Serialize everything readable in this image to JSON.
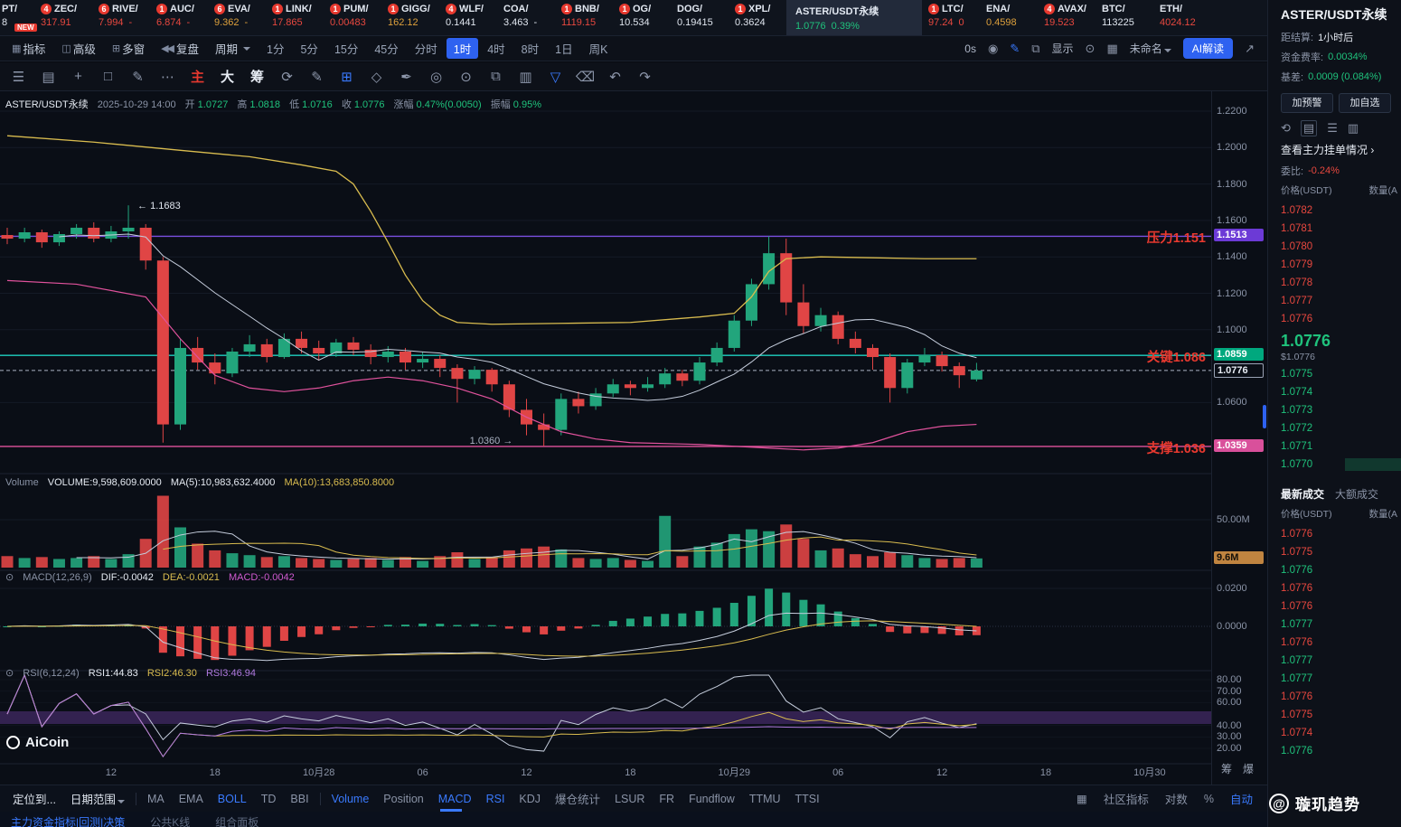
{
  "colors": {
    "green": "#1fc27c",
    "red": "#e8483f",
    "yellow": "#d9bc4f",
    "purple_line": "#7a4fe0",
    "teal_line": "#1fd1c1",
    "pink_line": "#e0529c",
    "blue_accent": "#2e62f0"
  },
  "ticker": {
    "items": [
      {
        "name": "PT/",
        "price": "8",
        "color": "white",
        "cut": true,
        "new_tag": "NEW"
      },
      {
        "name": "ZEC/",
        "price": "317.91",
        "color": "red",
        "badge": "4"
      },
      {
        "name": "RIVE/",
        "price": "7.994",
        "sub": "-",
        "color": "red",
        "badge": "6"
      },
      {
        "name": "AUC/",
        "price": "6.874",
        "sub": "-",
        "color": "red",
        "badge": "1"
      },
      {
        "name": "EVA/",
        "price": "9.362",
        "sub": "-",
        "color": "orange",
        "badge": "6"
      },
      {
        "name": "LINK/",
        "price": "17.865",
        "color": "red",
        "badge": "1"
      },
      {
        "name": "PUM/",
        "price": "0.00483",
        "color": "red",
        "badge": "1"
      },
      {
        "name": "GIGG/",
        "price": "162.12",
        "color": "orange",
        "badge": "1"
      },
      {
        "name": "WLF/",
        "price": "0.1441",
        "color": "white",
        "badge": "4"
      },
      {
        "name": "COA/",
        "price": "3.463",
        "sub": "-",
        "color": "white"
      },
      {
        "name": "BNB/",
        "price": "1119.15",
        "color": "red",
        "badge": "1"
      },
      {
        "name": "OG/",
        "price": "10.534",
        "color": "white",
        "badge": "1"
      },
      {
        "name": "DOG/",
        "price": "0.19415",
        "color": "white"
      },
      {
        "name": "XPL/",
        "price": "0.3624",
        "color": "white",
        "badge": "1"
      },
      {
        "name": "ASTER/USDT永续",
        "price": "1.0776",
        "sub": "0.39%",
        "color": "green",
        "selected": true
      },
      {
        "name": "LTC/",
        "price": "97.24",
        "sub": "0",
        "color": "red",
        "badge": "1"
      },
      {
        "name": "ENA/",
        "price": "0.4598",
        "color": "orange"
      },
      {
        "name": "AVAX/",
        "price": "19.523",
        "color": "red",
        "badge": "4"
      },
      {
        "name": "BTC/",
        "price": "113225",
        "color": "white"
      },
      {
        "name": "ETH/",
        "price": "4024.12",
        "color": "red"
      }
    ]
  },
  "toolbar": {
    "left": [
      {
        "icon": "▦",
        "icon_name": "indicator-icon",
        "label": "指标"
      },
      {
        "icon": "◫",
        "icon_name": "advanced-icon",
        "label": "高级"
      },
      {
        "icon": "⊞",
        "icon_name": "multi-window-icon",
        "label": "多窗"
      },
      {
        "icon": "◀◀",
        "icon_name": "replay-icon",
        "label": "复盘"
      }
    ],
    "period_label": "周期",
    "timeframes": [
      "1分",
      "5分",
      "15分",
      "45分",
      "分时",
      "1时",
      "4时",
      "8时",
      "1日",
      "周K"
    ],
    "active_timeframe": "1时",
    "right": [
      {
        "type": "text",
        "label": "0s",
        "name": "countdown-label"
      },
      {
        "type": "icon",
        "glyph": "◉",
        "name": "camera-icon"
      },
      {
        "type": "icon",
        "glyph": "✎",
        "name": "edit-icon",
        "color": "#3a7afe"
      },
      {
        "type": "icon",
        "glyph": "⧉",
        "name": "expand-icon"
      },
      {
        "type": "text",
        "label": "显示",
        "name": "display-toggle"
      },
      {
        "type": "icon",
        "glyph": "⊙",
        "name": "settings-icon"
      },
      {
        "type": "icon",
        "glyph": "▦",
        "name": "layout-grid-icon"
      },
      {
        "type": "text",
        "label": "未命名",
        "caret": true,
        "name": "template-select"
      },
      {
        "type": "button",
        "label": "AI解读",
        "name": "ai-analysis-button"
      },
      {
        "type": "icon",
        "glyph": "↗",
        "name": "share-icon"
      }
    ]
  },
  "drawbar": {
    "icons": [
      {
        "glyph": "☰",
        "name": "menu-icon"
      },
      {
        "glyph": "▤",
        "name": "panel-list-icon"
      },
      {
        "glyph": "+",
        "name": "crosshair-icon"
      },
      {
        "glyph": "□",
        "name": "rectangle-tool-icon"
      },
      {
        "glyph": "✎",
        "name": "pencil-tool-icon"
      },
      {
        "glyph": "⋯",
        "name": "more-tools-icon"
      },
      {
        "glyph": "主",
        "name": "main-chart-toggle",
        "cls": "red"
      },
      {
        "glyph": "大",
        "name": "large-chart-toggle",
        "cls": "white"
      },
      {
        "glyph": "筹",
        "name": "chip-distribution-toggle",
        "cls": "white"
      },
      {
        "glyph": "⟳",
        "name": "refresh-icon"
      },
      {
        "glyph": "✎",
        "name": "brush-icon"
      },
      {
        "glyph": "⊞",
        "name": "compare-icon",
        "cls": "blue"
      },
      {
        "glyph": "◇",
        "name": "shape-tool-icon"
      },
      {
        "glyph": "✒",
        "name": "pen-tool-icon"
      },
      {
        "glyph": "◎",
        "name": "marker-tool-icon"
      },
      {
        "glyph": "⊙",
        "name": "magnet-icon"
      },
      {
        "glyph": "⧉",
        "name": "copy-icon"
      },
      {
        "glyph": "▥",
        "name": "template-icon"
      },
      {
        "glyph": "▽",
        "name": "filter-icon",
        "cls": "blue"
      },
      {
        "glyph": "⌫",
        "name": "delete-drawing-icon"
      },
      {
        "glyph": "↶",
        "name": "undo-icon"
      },
      {
        "glyph": "↷",
        "name": "redo-icon"
      }
    ]
  },
  "chart": {
    "ohlc": {
      "symbol": "ASTER/USDT永续",
      "datetime": "2025-10-29 14:00",
      "o_label": "开",
      "o": "1.0727",
      "h_label": "高",
      "h": "1.0818",
      "l_label": "低",
      "l": "1.0716",
      "c_label": "收",
      "c": "1.0776",
      "chg_label": "涨幅",
      "chg": "0.47%(0.0050)",
      "amp_label": "振幅",
      "amp": "0.95%"
    },
    "volume_line": {
      "name": "Volume",
      "vol": "VOLUME:9,598,609.0000",
      "ma5": "MA(5):10,983,632.4000",
      "ma10": "MA(10):13,683,850.8000"
    },
    "macd_line": {
      "icon": "⊙",
      "name": "MACD(12,26,9)",
      "dif": "DIF:-0.0042",
      "dea": "DEA:-0.0021",
      "macd": "MACD:-0.0042"
    },
    "rsi_line": {
      "icon": "⊙",
      "name": "RSI(6,12,24)",
      "r1": "RSI1:44.83",
      "r2": "RSI2:46.30",
      "r3": "RSI3:46.94"
    },
    "level_labels": {
      "resistance": "压力1.151",
      "key": "关键1.086",
      "support": "支撑1.036"
    },
    "tags": {
      "resistance": "1.1513",
      "key": "1.0859",
      "current": "1.0776",
      "support": "1.0359",
      "volume": "9.6M"
    },
    "annotations": {
      "high": "← 1.1683",
      "low": "1.0360 →"
    },
    "y_axis": [
      "1.2200",
      "1.2000",
      "1.1800",
      "1.1600",
      "1.1400",
      "1.1200",
      "1.1000",
      "1.0600"
    ],
    "vol_axis": [
      "50.00M"
    ],
    "macd_axis": [
      "0.0200",
      "0.0000"
    ],
    "rsi_axis": [
      "80.00",
      "70.00",
      "60.00",
      "40.00",
      "30.00",
      "20.00"
    ],
    "x_axis": [
      {
        "label": "12",
        "i": 6
      },
      {
        "label": "18",
        "i": 12
      },
      {
        "label": "10月28",
        "i": 18
      },
      {
        "label": "06",
        "i": 24
      },
      {
        "label": "12",
        "i": 30
      },
      {
        "label": "18",
        "i": 36
      },
      {
        "label": "10月29",
        "i": 42
      },
      {
        "label": "06",
        "i": 48
      },
      {
        "label": "12",
        "i": 54
      },
      {
        "label": "18",
        "i": 60
      },
      {
        "label": "10月30",
        "i": 66
      }
    ],
    "axis_buttons": [
      "筹",
      "爆"
    ]
  },
  "chart_data": {
    "type": "candlestick",
    "symbol": "ASTER/USDT永续",
    "timeframe": "1时",
    "levels": {
      "resistance": 1.1513,
      "key": 1.0859,
      "current": 1.0776,
      "support": 1.0359
    },
    "annotations": {
      "high": {
        "i": 7,
        "price": 1.1683
      },
      "low": {
        "i": 31,
        "price": 1.036
      }
    },
    "candles": [
      [
        1.152,
        1.156,
        1.147,
        1.15,
        12
      ],
      [
        1.15,
        1.156,
        1.148,
        1.1535,
        10
      ],
      [
        1.1535,
        1.155,
        1.145,
        1.148,
        11
      ],
      [
        1.148,
        1.154,
        1.146,
        1.1525,
        9
      ],
      [
        1.1525,
        1.158,
        1.15,
        1.156,
        10
      ],
      [
        1.156,
        1.159,
        1.148,
        1.15,
        12
      ],
      [
        1.15,
        1.157,
        1.148,
        1.154,
        9
      ],
      [
        1.154,
        1.1683,
        1.15,
        1.156,
        14
      ],
      [
        1.156,
        1.158,
        1.133,
        1.138,
        30
      ],
      [
        1.138,
        1.14,
        1.038,
        1.048,
        75
      ],
      [
        1.048,
        1.095,
        1.045,
        1.09,
        42
      ],
      [
        1.09,
        1.096,
        1.078,
        1.082,
        25
      ],
      [
        1.082,
        1.087,
        1.07,
        1.076,
        18
      ],
      [
        1.076,
        1.09,
        1.074,
        1.088,
        15
      ],
      [
        1.088,
        1.097,
        1.085,
        1.092,
        13
      ],
      [
        1.092,
        1.095,
        1.082,
        1.085,
        11
      ],
      [
        1.085,
        1.098,
        1.084,
        1.095,
        12
      ],
      [
        1.095,
        1.099,
        1.087,
        1.09,
        10
      ],
      [
        1.09,
        1.094,
        1.083,
        1.087,
        9
      ],
      [
        1.087,
        1.095,
        1.085,
        1.093,
        8
      ],
      [
        1.093,
        1.096,
        1.086,
        1.089,
        9
      ],
      [
        1.089,
        1.092,
        1.081,
        1.085,
        10
      ],
      [
        1.085,
        1.091,
        1.082,
        1.088,
        8
      ],
      [
        1.088,
        1.09,
        1.078,
        1.082,
        11
      ],
      [
        1.082,
        1.088,
        1.079,
        1.084,
        7
      ],
      [
        1.084,
        1.086,
        1.074,
        1.079,
        12
      ],
      [
        1.079,
        1.081,
        1.06,
        1.073,
        16
      ],
      [
        1.073,
        1.08,
        1.07,
        1.078,
        9
      ],
      [
        1.078,
        1.079,
        1.066,
        1.07,
        11
      ],
      [
        1.07,
        1.072,
        1.052,
        1.056,
        18
      ],
      [
        1.056,
        1.062,
        1.042,
        1.048,
        20
      ],
      [
        1.048,
        1.054,
        1.036,
        1.045,
        22
      ],
      [
        1.045,
        1.065,
        1.042,
        1.062,
        19
      ],
      [
        1.062,
        1.066,
        1.054,
        1.058,
        10
      ],
      [
        1.058,
        1.068,
        1.056,
        1.065,
        9
      ],
      [
        1.065,
        1.073,
        1.063,
        1.07,
        10
      ],
      [
        1.07,
        1.072,
        1.064,
        1.068,
        8
      ],
      [
        1.068,
        1.074,
        1.066,
        1.07,
        7
      ],
      [
        1.07,
        1.079,
        1.068,
        1.076,
        54
      ],
      [
        1.076,
        1.078,
        1.069,
        1.072,
        12
      ],
      [
        1.072,
        1.085,
        1.07,
        1.082,
        22
      ],
      [
        1.082,
        1.093,
        1.08,
        1.09,
        26
      ],
      [
        1.09,
        1.108,
        1.088,
        1.105,
        35
      ],
      [
        1.105,
        1.128,
        1.102,
        1.125,
        40
      ],
      [
        1.125,
        1.1513,
        1.122,
        1.142,
        38
      ],
      [
        1.142,
        1.15,
        1.108,
        1.115,
        45
      ],
      [
        1.115,
        1.125,
        1.098,
        1.102,
        30
      ],
      [
        1.102,
        1.112,
        1.099,
        1.108,
        18
      ],
      [
        1.108,
        1.11,
        1.092,
        1.095,
        20
      ],
      [
        1.095,
        1.099,
        1.087,
        1.09,
        14
      ],
      [
        1.09,
        1.092,
        1.078,
        1.085,
        12
      ],
      [
        1.085,
        1.087,
        1.06,
        1.068,
        16
      ],
      [
        1.068,
        1.084,
        1.065,
        1.082,
        13
      ],
      [
        1.082,
        1.09,
        1.08,
        1.086,
        10
      ],
      [
        1.086,
        1.088,
        1.077,
        1.08,
        9
      ],
      [
        1.08,
        1.082,
        1.068,
        1.075,
        10
      ],
      [
        1.0727,
        1.0818,
        1.0716,
        1.0776,
        9.6
      ]
    ],
    "overlays": {
      "ma_yellow": [
        [
          0,
          1.2065
        ],
        [
          5,
          1.203
        ],
        [
          10,
          1.1985
        ],
        [
          14,
          1.195
        ],
        [
          17,
          1.1905
        ],
        [
          19,
          1.187
        ],
        [
          20,
          1.18
        ],
        [
          21,
          1.165
        ],
        [
          22,
          1.148
        ],
        [
          23,
          1.13
        ],
        [
          24,
          1.116
        ],
        [
          25,
          1.108
        ],
        [
          26,
          1.104
        ],
        [
          28,
          1.103
        ],
        [
          32,
          1.1035
        ],
        [
          36,
          1.104
        ],
        [
          40,
          1.107
        ],
        [
          42,
          1.109
        ],
        [
          43,
          1.118
        ],
        [
          44,
          1.132
        ],
        [
          45,
          1.139
        ],
        [
          47,
          1.14
        ],
        [
          50,
          1.1395
        ],
        [
          53,
          1.139
        ],
        [
          56,
          1.139
        ]
      ],
      "boll_lower": [
        [
          0,
          1.127
        ],
        [
          4,
          1.125
        ],
        [
          8,
          1.118
        ],
        [
          10,
          1.095
        ],
        [
          12,
          1.075
        ],
        [
          14,
          1.068
        ],
        [
          16,
          1.066
        ],
        [
          18,
          1.068
        ],
        [
          20,
          1.072
        ],
        [
          22,
          1.074
        ],
        [
          24,
          1.072
        ],
        [
          26,
          1.068
        ],
        [
          28,
          1.062
        ],
        [
          30,
          1.052
        ],
        [
          32,
          1.044
        ],
        [
          34,
          1.04
        ],
        [
          36,
          1.038
        ],
        [
          40,
          1.037
        ],
        [
          44,
          1.035
        ],
        [
          46,
          1.034
        ],
        [
          48,
          1.035
        ],
        [
          50,
          1.038
        ],
        [
          52,
          1.044
        ],
        [
          54,
          1.047
        ],
        [
          56,
          1.048
        ]
      ]
    }
  },
  "sidebar": {
    "title": "ASTER/USDT永续",
    "stats": [
      {
        "label": "距结算:",
        "value": "1小时后",
        "color": "white"
      },
      {
        "label": "资金费率:",
        "value": "0.0034%",
        "color": "green"
      },
      {
        "label": "基差:",
        "value": "0.0009 (0.084%)",
        "color": "green"
      }
    ],
    "buttons": [
      "加预警",
      "加自选"
    ],
    "view_icons": [
      {
        "glyph": "⟲",
        "name": "refresh-book-icon"
      },
      {
        "glyph": "▤",
        "name": "depth-view-icon",
        "boxed": true
      },
      {
        "glyph": "☰",
        "name": "list-view-icon"
      },
      {
        "glyph": "▥",
        "name": "grid-view-icon"
      }
    ],
    "link": "查看主力挂单情况",
    "link_arrow": "›",
    "weibi_label": "委比:",
    "weibi_value": "-0.24%",
    "book_header": [
      "价格(USDT)",
      "数量(A"
    ],
    "asks": [
      "1.0782",
      "1.0781",
      "1.0780",
      "1.0779",
      "1.0778",
      "1.0777",
      "1.0776"
    ],
    "last_price": "1.0776",
    "last_price_usd": "$1.0776",
    "bids": [
      "1.0775",
      "1.0774",
      "1.0773",
      "1.0772",
      "1.0771",
      "1.0770"
    ],
    "tabs": [
      "最新成交",
      "大额成交"
    ],
    "active_tab": "最新成交",
    "trades_header": [
      "价格(USDT)",
      "数量(A"
    ],
    "trades": [
      {
        "price": "1.0776",
        "side": "red"
      },
      {
        "price": "1.0775",
        "side": "red"
      },
      {
        "price": "1.0776",
        "side": "green"
      },
      {
        "price": "1.0776",
        "side": "red"
      },
      {
        "price": "1.0776",
        "side": "red"
      },
      {
        "price": "1.0777",
        "side": "green"
      },
      {
        "price": "1.0776",
        "side": "red"
      },
      {
        "price": "1.0777",
        "side": "green"
      },
      {
        "price": "1.0777",
        "side": "green"
      },
      {
        "price": "1.0776",
        "side": "red"
      },
      {
        "price": "1.0775",
        "side": "red"
      },
      {
        "price": "1.0774",
        "side": "red"
      },
      {
        "price": "1.0776",
        "side": "green"
      }
    ]
  },
  "bottom_bar": {
    "locate": "定位到...",
    "date_range": "日期范围",
    "overlays": [
      {
        "label": "MA"
      },
      {
        "label": "EMA"
      },
      {
        "label": "BOLL",
        "active": true
      },
      {
        "label": "TD"
      },
      {
        "label": "BBI"
      }
    ],
    "indicators": [
      {
        "label": "Volume",
        "active": true
      },
      {
        "label": "Position"
      },
      {
        "label": "MACD",
        "active": true,
        "marker": true
      },
      {
        "label": "RSI",
        "active": true
      },
      {
        "label": "KDJ"
      },
      {
        "label": "爆仓统计"
      },
      {
        "label": "LSUR"
      },
      {
        "label": "FR"
      },
      {
        "label": "Fundflow"
      },
      {
        "label": "TTMU"
      },
      {
        "label": "TTSI"
      }
    ],
    "right": [
      {
        "label": "社区指标"
      },
      {
        "label": "对数"
      },
      {
        "label": "%"
      },
      {
        "label": "自动",
        "active": true
      }
    ]
  },
  "bottom_strip": [
    {
      "label": "主力资金指标|回测|决策",
      "blue": true
    },
    {
      "label": "公共K线"
    },
    {
      "label": "组合面板"
    }
  ],
  "watermarks": {
    "aicoin": "AiCoin",
    "brand_at": "@",
    "brand": "璇玑趋势"
  }
}
